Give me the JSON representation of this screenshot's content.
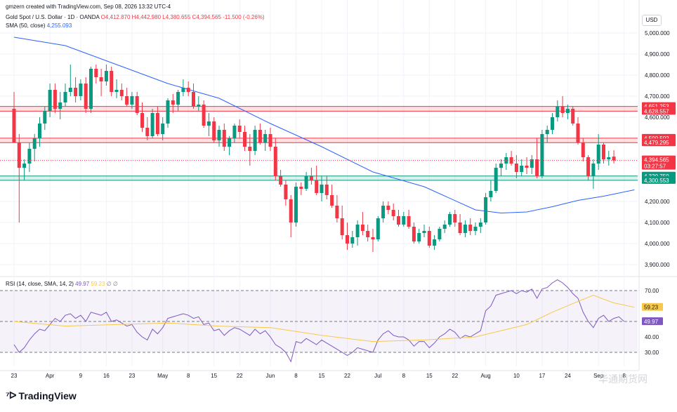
{
  "header": {
    "created_by": "gmzern created with TradingView.com, Sep 08, 2026 13:32 UTC-4",
    "symbol": "Gold Spot / U.S. Dollar · 1D · OANDA",
    "ohlc": {
      "open": "O4,412.870",
      "high": "H4,442.980",
      "low": "L4,380.655",
      "close": "C4,394.565",
      "change": "-11.500 (-0.26%)"
    },
    "sma_label": "SMA (50, close)",
    "sma_value": "4,255.093",
    "rsi_label": "RSI (14, close, SMA, 14, 2)",
    "rsi_value": "49.97",
    "rsi_sma_value": "59.23",
    "rsi_extra": "∅ ∅"
  },
  "currency_badge": "USD",
  "brand": "TradingView",
  "watermark": "华通期货网",
  "colors": {
    "up": "#089981",
    "down": "#f23645",
    "sma": "#2962ff",
    "rsi_line": "#7e57c2",
    "rsi_sma": "#f7c948",
    "resistance_zone": "#f23645",
    "support_zone": "#089981",
    "rsi_band": "#7e57c2"
  },
  "chart_data": [
    {
      "type": "candlestick",
      "title": "Gold Spot / U.S. Dollar · 1D · OANDA",
      "ylabel": "USD",
      "ylim": [
        3850,
        5050
      ],
      "y_ticks": [
        3900,
        4000,
        4100,
        4200,
        4300,
        4400,
        4500,
        4600,
        4700,
        4800,
        4900,
        5000
      ],
      "y_tick_labels": [
        "3,900.000",
        "4,000.000",
        "4,100.000",
        "4,200.000",
        "4,300.000",
        "4,400.000",
        "4,500.000",
        "4,600.000",
        "4,700.000",
        "4,800.000",
        "4,900.000",
        "5,000.000"
      ],
      "x_tick_labels": [
        {
          "label": "23",
          "bar": 0
        },
        {
          "label": "Apr",
          "bar": 7
        },
        {
          "label": "9",
          "bar": 13
        },
        {
          "label": "16",
          "bar": 18
        },
        {
          "label": "23",
          "bar": 23
        },
        {
          "label": "May",
          "bar": 29
        },
        {
          "label": "8",
          "bar": 34
        },
        {
          "label": "15",
          "bar": 39
        },
        {
          "label": "22",
          "bar": 44
        },
        {
          "label": "Jun",
          "bar": 50
        },
        {
          "label": "8",
          "bar": 55
        },
        {
          "label": "15",
          "bar": 60
        },
        {
          "label": "22",
          "bar": 65
        },
        {
          "label": "Jul",
          "bar": 71
        },
        {
          "label": "8",
          "bar": 76
        },
        {
          "label": "15",
          "bar": 81
        },
        {
          "label": "22",
          "bar": 86
        },
        {
          "label": "Aug",
          "bar": 92
        },
        {
          "label": "10",
          "bar": 98
        },
        {
          "label": "17",
          "bar": 103
        },
        {
          "label": "24",
          "bar": 108
        },
        {
          "label": "Sep",
          "bar": 114
        },
        {
          "label": "8",
          "bar": 119
        }
      ],
      "zones": [
        {
          "from": 4628.557,
          "to": 4651.253,
          "labels": [
            "4,651.253",
            "4,628.557"
          ],
          "kind": "resistance"
        },
        {
          "from": 4479.295,
          "to": 4500.502,
          "labels": [
            "4,500.502",
            "4,479.295"
          ],
          "kind": "resistance"
        },
        {
          "from": 4300.553,
          "to": 4320.75,
          "labels": [
            "4,320.750",
            "4,300.553"
          ],
          "kind": "support"
        }
      ],
      "last_price": {
        "value": 4394.565,
        "label": "4,394.565",
        "countdown": "03:27:57"
      },
      "candles": [
        [
          4640,
          4720,
          4480,
          4480
        ],
        [
          4480,
          4520,
          4100,
          4360
        ],
        [
          4360,
          4400,
          4300,
          4380
        ],
        [
          4380,
          4480,
          4340,
          4450
        ],
        [
          4450,
          4520,
          4390,
          4500
        ],
        [
          4500,
          4600,
          4460,
          4570
        ],
        [
          4570,
          4650,
          4540,
          4630
        ],
        [
          4630,
          4760,
          4600,
          4730
        ],
        [
          4730,
          4760,
          4620,
          4640
        ],
        [
          4640,
          4720,
          4590,
          4670
        ],
        [
          4670,
          4760,
          4650,
          4720
        ],
        [
          4720,
          4850,
          4700,
          4740
        ],
        [
          4740,
          4790,
          4670,
          4700
        ],
        [
          4700,
          4780,
          4680,
          4760
        ],
        [
          4760,
          4790,
          4620,
          4640
        ],
        [
          4640,
          4840,
          4620,
          4830
        ],
        [
          4830,
          4850,
          4760,
          4790
        ],
        [
          4790,
          4830,
          4700,
          4770
        ],
        [
          4770,
          4850,
          4750,
          4820
        ],
        [
          4820,
          4840,
          4700,
          4720
        ],
        [
          4720,
          4780,
          4690,
          4730
        ],
        [
          4730,
          4760,
          4680,
          4700
        ],
        [
          4700,
          4740,
          4650,
          4660
        ],
        [
          4660,
          4720,
          4640,
          4700
        ],
        [
          4700,
          4720,
          4610,
          4620
        ],
        [
          4620,
          4670,
          4530,
          4550
        ],
        [
          4550,
          4600,
          4490,
          4510
        ],
        [
          4510,
          4640,
          4500,
          4620
        ],
        [
          4620,
          4650,
          4510,
          4520
        ],
        [
          4520,
          4600,
          4490,
          4570
        ],
        [
          4570,
          4690,
          4550,
          4680
        ],
        [
          4680,
          4710,
          4620,
          4660
        ],
        [
          4660,
          4730,
          4630,
          4720
        ],
        [
          4720,
          4780,
          4700,
          4740
        ],
        [
          4740,
          4770,
          4700,
          4720
        ],
        [
          4720,
          4760,
          4640,
          4650
        ],
        [
          4650,
          4700,
          4630,
          4660
        ],
        [
          4660,
          4680,
          4550,
          4560
        ],
        [
          4560,
          4620,
          4510,
          4580
        ],
        [
          4580,
          4600,
          4480,
          4490
        ],
        [
          4490,
          4560,
          4460,
          4540
        ],
        [
          4540,
          4570,
          4440,
          4460
        ],
        [
          4460,
          4510,
          4420,
          4500
        ],
        [
          4500,
          4570,
          4480,
          4560
        ],
        [
          4560,
          4590,
          4500,
          4530
        ],
        [
          4530,
          4560,
          4440,
          4460
        ],
        [
          4460,
          4520,
          4370,
          4440
        ],
        [
          4440,
          4560,
          4420,
          4540
        ],
        [
          4540,
          4570,
          4470,
          4480
        ],
        [
          4480,
          4540,
          4440,
          4520
        ],
        [
          4520,
          4550,
          4440,
          4460
        ],
        [
          4460,
          4500,
          4300,
          4320
        ],
        [
          4320,
          4350,
          4270,
          4280
        ],
        [
          4280,
          4300,
          4180,
          4210
        ],
        [
          4210,
          4230,
          4030,
          4100
        ],
        [
          4100,
          4290,
          4080,
          4270
        ],
        [
          4270,
          4290,
          4230,
          4260
        ],
        [
          4260,
          4340,
          4250,
          4320
        ],
        [
          4320,
          4360,
          4280,
          4300
        ],
        [
          4300,
          4370,
          4230,
          4240
        ],
        [
          4240,
          4320,
          4200,
          4280
        ],
        [
          4280,
          4320,
          4210,
          4230
        ],
        [
          4230,
          4280,
          4170,
          4180
        ],
        [
          4180,
          4230,
          4100,
          4120
        ],
        [
          4120,
          4180,
          4020,
          4040
        ],
        [
          4040,
          4100,
          3970,
          4000
        ],
        [
          4000,
          4060,
          3980,
          4030
        ],
        [
          4030,
          4110,
          3990,
          4090
        ],
        [
          4090,
          4150,
          4040,
          4060
        ],
        [
          4060,
          4090,
          4010,
          4030
        ],
        [
          4030,
          4070,
          3960,
          4020
        ],
        [
          4020,
          4130,
          4010,
          4120
        ],
        [
          4120,
          4200,
          4100,
          4180
        ],
        [
          4180,
          4200,
          4140,
          4160
        ],
        [
          4160,
          4190,
          4110,
          4130
        ],
        [
          4130,
          4160,
          4080,
          4090
        ],
        [
          4090,
          4150,
          4080,
          4130
        ],
        [
          4130,
          4160,
          4070,
          4080
        ],
        [
          4080,
          4100,
          4000,
          4010
        ],
        [
          4010,
          4070,
          4000,
          4050
        ],
        [
          4050,
          4090,
          4030,
          4060
        ],
        [
          4060,
          4080,
          3980,
          3990
        ],
        [
          3990,
          4040,
          3970,
          4020
        ],
        [
          4020,
          4080,
          4010,
          4070
        ],
        [
          4070,
          4110,
          4050,
          4090
        ],
        [
          4090,
          4150,
          4080,
          4140
        ],
        [
          4140,
          4160,
          4080,
          4100
        ],
        [
          4100,
          4140,
          4040,
          4050
        ],
        [
          4050,
          4110,
          4030,
          4090
        ],
        [
          4090,
          4120,
          4040,
          4060
        ],
        [
          4060,
          4100,
          4040,
          4080
        ],
        [
          4080,
          4120,
          4050,
          4100
        ],
        [
          4100,
          4240,
          4090,
          4220
        ],
        [
          4220,
          4300,
          4200,
          4250
        ],
        [
          4250,
          4380,
          4240,
          4360
        ],
        [
          4360,
          4400,
          4320,
          4380
        ],
        [
          4380,
          4430,
          4350,
          4410
        ],
        [
          4410,
          4440,
          4370,
          4380
        ],
        [
          4380,
          4420,
          4310,
          4340
        ],
        [
          4340,
          4400,
          4320,
          4370
        ],
        [
          4370,
          4410,
          4330,
          4360
        ],
        [
          4360,
          4420,
          4330,
          4400
        ],
        [
          4400,
          4500,
          4310,
          4320
        ],
        [
          4320,
          4540,
          4310,
          4520
        ],
        [
          4520,
          4560,
          4480,
          4540
        ],
        [
          4540,
          4620,
          4520,
          4600
        ],
        [
          4600,
          4680,
          4580,
          4650
        ],
        [
          4650,
          4700,
          4600,
          4620
        ],
        [
          4620,
          4660,
          4590,
          4640
        ],
        [
          4640,
          4650,
          4560,
          4570
        ],
        [
          4570,
          4600,
          4470,
          4480
        ],
        [
          4480,
          4500,
          4390,
          4410
        ],
        [
          4410,
          4420,
          4300,
          4320
        ],
        [
          4320,
          4400,
          4260,
          4380
        ],
        [
          4380,
          4520,
          4350,
          4470
        ],
        [
          4470,
          4480,
          4380,
          4400
        ],
        [
          4400,
          4440,
          4370,
          4410
        ],
        [
          4412.87,
          4442.98,
          4380.655,
          4394.565
        ]
      ],
      "sma50": [
        [
          0,
          4980
        ],
        [
          10,
          4940
        ],
        [
          20,
          4850
        ],
        [
          30,
          4760
        ],
        [
          40,
          4690
        ],
        [
          50,
          4570
        ],
        [
          60,
          4460
        ],
        [
          70,
          4340
        ],
        [
          80,
          4270
        ],
        [
          90,
          4160
        ],
        [
          95,
          4145
        ],
        [
          100,
          4150
        ],
        [
          105,
          4175
        ],
        [
          110,
          4205
        ],
        [
          115,
          4225
        ],
        [
          121,
          4255.093
        ]
      ]
    },
    {
      "type": "line",
      "title": "RSI (14, close, SMA, 14, 2)",
      "ylim": [
        25,
        78
      ],
      "y_ticks": [
        30,
        40,
        50,
        60,
        70
      ],
      "y_tick_labels": [
        "30.00",
        "40.00",
        "50.00",
        "60.00",
        "70.00"
      ],
      "band": [
        30,
        70
      ],
      "mid": 50,
      "series": [
        {
          "name": "RSI",
          "values": [
            35,
            30,
            33,
            38,
            42,
            45,
            44,
            48,
            52,
            50,
            54,
            55,
            52,
            54,
            50,
            56,
            55,
            54,
            56,
            50,
            51,
            49,
            47,
            48,
            43,
            40,
            38,
            45,
            42,
            46,
            52,
            53,
            54,
            55,
            54,
            52,
            53,
            48,
            49,
            44,
            45,
            41,
            44,
            46,
            45,
            43,
            41,
            45,
            42,
            44,
            40,
            35,
            33,
            30,
            24,
            37,
            36,
            39,
            37,
            35,
            38,
            36,
            34,
            32,
            30,
            28,
            30,
            33,
            32,
            31,
            30,
            38,
            42,
            44,
            41,
            40,
            40,
            38,
            34,
            37,
            37,
            33,
            36,
            40,
            42,
            45,
            43,
            39,
            41,
            40,
            42,
            44,
            57,
            60,
            67,
            68,
            69,
            70,
            68,
            70,
            69,
            71,
            65,
            71,
            72,
            75,
            77,
            75,
            72,
            68,
            65,
            56,
            50,
            46,
            52,
            54,
            50,
            52,
            53,
            49.97
          ],
          "value_label": "49.97"
        },
        {
          "name": "RSI-based MA",
          "points": [
            [
              0,
              50
            ],
            [
              10,
              47
            ],
            [
              20,
              48
            ],
            [
              30,
              49
            ],
            [
              40,
              47
            ],
            [
              50,
              46
            ],
            [
              60,
              41
            ],
            [
              70,
              37
            ],
            [
              80,
              38
            ],
            [
              90,
              40
            ],
            [
              100,
              48
            ],
            [
              105,
              56
            ],
            [
              110,
              63
            ],
            [
              113,
              67
            ],
            [
              117,
              62
            ],
            [
              121,
              59.23
            ]
          ],
          "value_label": "59.23"
        }
      ]
    }
  ]
}
